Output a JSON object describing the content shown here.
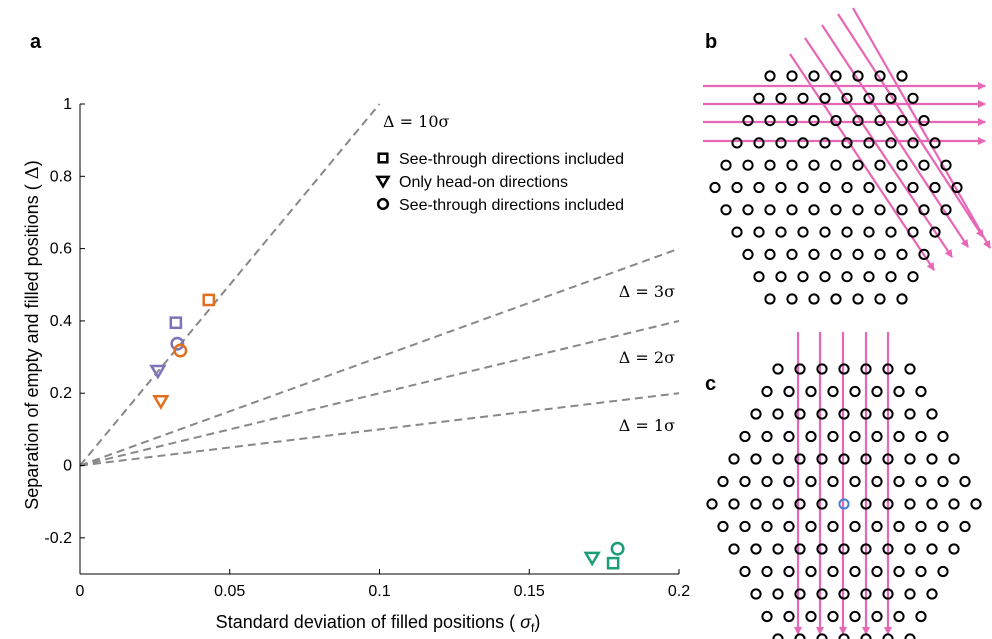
{
  "panels": {
    "a": "a",
    "b": "b",
    "c": "c"
  },
  "chart_data": {
    "type": "scatter",
    "xlabel": "Standard deviation of filled positions ( σf)",
    "ylabel": "Separation of empty and filled positions ( Δ)",
    "xlim": [
      0,
      0.2
    ],
    "ylim": [
      -0.3,
      1
    ],
    "xticks": [
      0,
      0.05,
      0.1,
      0.15,
      0.2
    ],
    "xtick_labels": [
      "0",
      "0.05",
      "0.1",
      "0.15",
      "0.2"
    ],
    "yticks": [
      -0.2,
      0,
      0.2,
      0.4,
      0.6,
      0.8,
      1
    ],
    "ytick_labels": [
      "-0.2",
      "0",
      "0.2",
      "0.4",
      "0.6",
      "0.8",
      "1"
    ],
    "reference_lines": [
      {
        "label": "Δ = 10σ",
        "slope": 10
      },
      {
        "label": "Δ = 3σ",
        "slope": 3
      },
      {
        "label": "Δ = 2σ",
        "slope": 2
      },
      {
        "label": "Δ = 1σ",
        "slope": 1
      }
    ],
    "legend": [
      {
        "marker": "square",
        "label": "See-through directions included"
      },
      {
        "marker": "triangle",
        "label": "Only head-on directions"
      },
      {
        "marker": "circle",
        "label": "See-through directions included"
      }
    ],
    "points": [
      {
        "x": 0.032,
        "y": 0.395,
        "marker": "square",
        "color": "#7b74b8"
      },
      {
        "x": 0.043,
        "y": 0.458,
        "marker": "square",
        "color": "#e07020"
      },
      {
        "x": 0.178,
        "y": -0.27,
        "marker": "square",
        "color": "#1b9e77"
      },
      {
        "x": 0.026,
        "y": 0.262,
        "marker": "triangle",
        "color": "#7b74b8"
      },
      {
        "x": 0.027,
        "y": 0.178,
        "marker": "triangle",
        "color": "#e07020"
      },
      {
        "x": 0.171,
        "y": -0.255,
        "marker": "triangle",
        "color": "#1b9e77"
      },
      {
        "x": 0.0325,
        "y": 0.337,
        "marker": "circle",
        "color": "#7b74b8"
      },
      {
        "x": 0.0335,
        "y": 0.318,
        "marker": "circle",
        "color": "#e07020"
      },
      {
        "x": 0.1795,
        "y": -0.23,
        "marker": "circle",
        "color": "#1b9e77"
      }
    ]
  },
  "lattice_rows_b": [
    7,
    8,
    9,
    10,
    11,
    12,
    11,
    10,
    9,
    8,
    7
  ],
  "lattice_rows_c": [
    7,
    8,
    9,
    10,
    11,
    12,
    13,
    12,
    11,
    10,
    9,
    8,
    7
  ],
  "colors": {
    "dashed_line": "#888888",
    "arrow": "#e766b6",
    "center": "#4a7fd4",
    "dot": "#000000"
  }
}
